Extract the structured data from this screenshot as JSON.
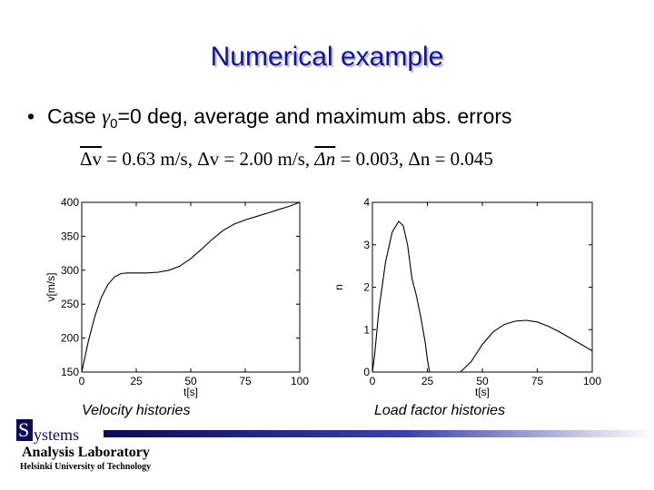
{
  "slide": {
    "title": "Numerical example",
    "bullet": {
      "marker": "•",
      "prefix": "Case ",
      "symbol": "γ",
      "subscript": "0",
      "suffix": "=0 deg, average and maximum abs. errors"
    },
    "formula": {
      "avg_dv_sym": "Δv",
      "avg_dv_val": " = 0.63 m/s, ",
      "max_dv_sym": "Δv",
      "max_dv_val": " = 2.00 m/s, ",
      "avg_dn_sym": "Δn",
      "avg_dn_val": " = 0.003, ",
      "max_dn_sym": "Δn",
      "max_dn_val": " = 0.045"
    },
    "captions": {
      "left": "Velocity histories",
      "right": "Load factor histories"
    },
    "logo": {
      "initial": "S",
      "word_rest": "ystems",
      "laboratory": "Analysis Laboratory",
      "university": "Helsinki University of Technology"
    }
  },
  "chart_data": [
    {
      "type": "line",
      "xlabel": "t[s]",
      "ylabel": "v[m/s]",
      "xlim": [
        0,
        100
      ],
      "ylim": [
        150,
        400
      ],
      "xticks": [
        0,
        25,
        50,
        75,
        100
      ],
      "yticks": [
        150,
        200,
        250,
        300,
        350,
        400
      ],
      "grid": false,
      "series": [
        {
          "x": [
            0,
            3,
            6,
            9,
            12,
            15,
            18,
            21,
            24,
            27,
            30,
            35,
            40,
            45,
            50,
            55,
            60,
            65,
            70,
            75,
            80,
            85,
            90,
            95,
            100
          ],
          "y": [
            150,
            195,
            232,
            260,
            279,
            290,
            295,
            296,
            296,
            296,
            296,
            297,
            300,
            306,
            317,
            331,
            346,
            359,
            368,
            374,
            379,
            384,
            389,
            394,
            400
          ]
        }
      ]
    },
    {
      "type": "line",
      "xlabel": "t[s]",
      "ylabel": "n",
      "xlim": [
        0,
        100
      ],
      "ylim": [
        0,
        4
      ],
      "xticks": [
        0,
        25,
        50,
        75,
        100
      ],
      "yticks": [
        0,
        1,
        2,
        3,
        4
      ],
      "grid": false,
      "series": [
        {
          "x": [
            0,
            1,
            3,
            6,
            9,
            12,
            14,
            16,
            18,
            20,
            22,
            24,
            25,
            26
          ],
          "y": [
            0,
            0.4,
            1.5,
            2.6,
            3.3,
            3.55,
            3.45,
            3.0,
            2.2,
            1.8,
            1.3,
            0.7,
            0.3,
            0
          ]
        },
        {
          "x": [
            40,
            45,
            50,
            55,
            60,
            65,
            70,
            75,
            80,
            85,
            90,
            95,
            100
          ],
          "y": [
            0,
            0.25,
            0.65,
            0.95,
            1.12,
            1.2,
            1.22,
            1.18,
            1.08,
            0.95,
            0.8,
            0.65,
            0.5
          ]
        }
      ]
    }
  ]
}
